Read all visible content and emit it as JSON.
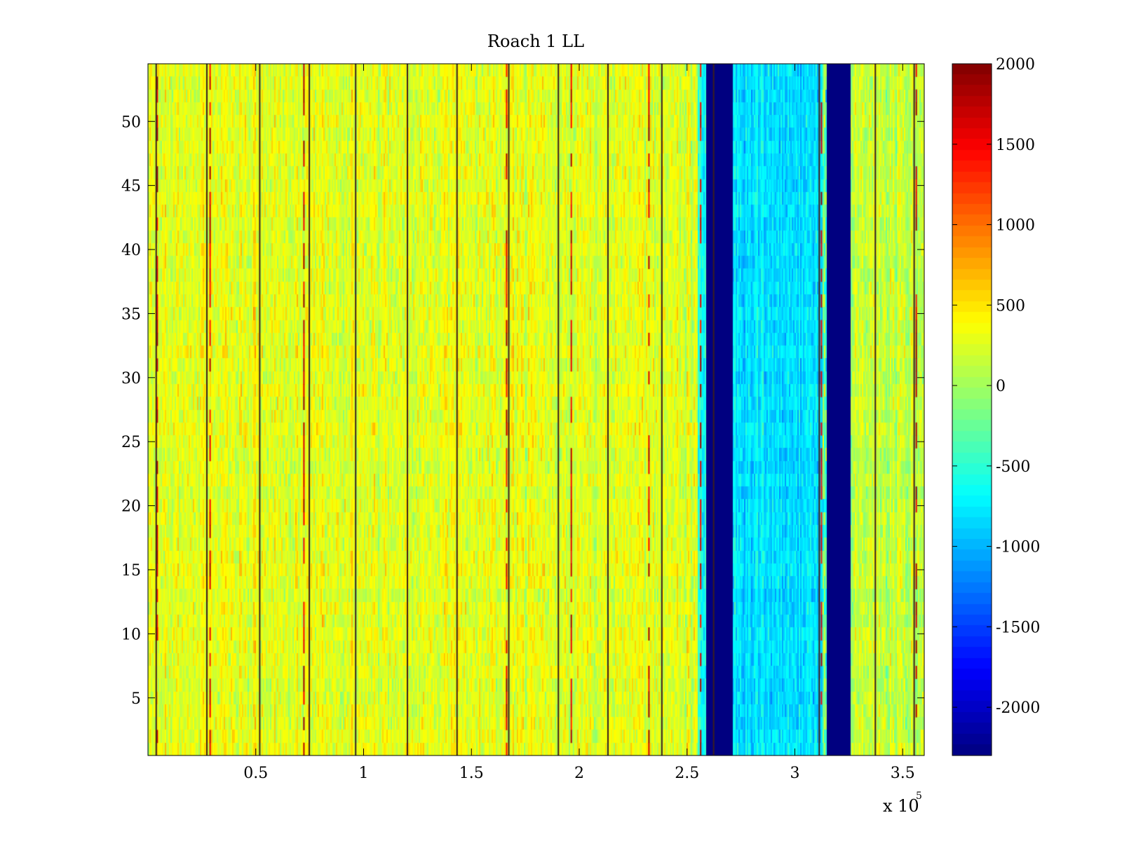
{
  "chart_data": {
    "type": "heatmap",
    "title": "Roach 1 LL",
    "xlabel": "",
    "ylabel": "",
    "x_multiplier_label": "x 10",
    "x_multiplier_exponent": "5",
    "xlim": [
      0,
      360000
    ],
    "ylim": [
      0.5,
      54.5
    ],
    "x_ticks": [
      {
        "value": 50000,
        "label": "0.5"
      },
      {
        "value": 100000,
        "label": "1"
      },
      {
        "value": 150000,
        "label": "1.5"
      },
      {
        "value": 200000,
        "label": "2"
      },
      {
        "value": 250000,
        "label": "2.5"
      },
      {
        "value": 300000,
        "label": "3"
      },
      {
        "value": 350000,
        "label": "3.5"
      }
    ],
    "y_ticks": [
      {
        "value": 5,
        "label": "5"
      },
      {
        "value": 10,
        "label": "10"
      },
      {
        "value": 15,
        "label": "15"
      },
      {
        "value": 20,
        "label": "20"
      },
      {
        "value": 25,
        "label": "25"
      },
      {
        "value": 30,
        "label": "30"
      },
      {
        "value": 35,
        "label": "35"
      },
      {
        "value": 40,
        "label": "40"
      },
      {
        "value": 45,
        "label": "45"
      },
      {
        "value": 50,
        "label": "50"
      }
    ],
    "colorbar": {
      "colormap": "jet",
      "clim": [
        -2300,
        2000
      ],
      "ticks": [
        {
          "value": 2000,
          "label": "2000"
        },
        {
          "value": 1500,
          "label": "1500"
        },
        {
          "value": 1000,
          "label": "1000"
        },
        {
          "value": 500,
          "label": "500"
        },
        {
          "value": 0,
          "label": "0"
        },
        {
          "value": -500,
          "label": "-500"
        },
        {
          "value": -1000,
          "label": "-1000"
        },
        {
          "value": -1500,
          "label": "-1500"
        },
        {
          "value": -2000,
          "label": "-2000"
        }
      ]
    },
    "rows": 54,
    "x_segments": [
      {
        "x0": 0,
        "x1": 255000,
        "mean": 280,
        "noise": 320
      },
      {
        "x0": 255000,
        "x1": 259000,
        "mean": -650,
        "noise": 300
      },
      {
        "x0": 259000,
        "x1": 271000,
        "mean": -2300,
        "noise": 0
      },
      {
        "x0": 271000,
        "x1": 313000,
        "mean": -800,
        "noise": 280
      },
      {
        "x0": 313000,
        "x1": 315000,
        "mean": -300,
        "noise": 700
      },
      {
        "x0": 315000,
        "x1": 326000,
        "mean": -2300,
        "noise": 0
      },
      {
        "x0": 326000,
        "x1": 360000,
        "mean": 150,
        "noise": 330
      }
    ],
    "dark_columns_x": [
      3500,
      27000,
      51500,
      74500,
      96000,
      120000,
      143000,
      167000,
      190000,
      213000,
      238000,
      262000,
      311000,
      337000,
      355000
    ],
    "hot_columns_x": [
      4000,
      28500,
      72000,
      166000,
      196000,
      232000,
      256000,
      312000,
      356000
    ]
  }
}
